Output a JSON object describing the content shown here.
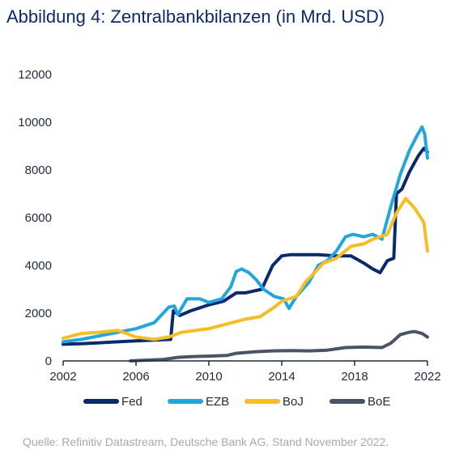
{
  "title": "Abbildung 4: Zentralbankbilanzen (in Mrd. USD)",
  "source": "Quelle: Refinitiv Datastream, Deutsche Bank AG. Stand November 2022.",
  "chart_data": {
    "type": "line",
    "xlim": [
      2002,
      2022
    ],
    "ylim": [
      0,
      12000
    ],
    "x_ticks": [
      "2002",
      "2006",
      "2010",
      "2014",
      "2018",
      "2022"
    ],
    "y_ticks": [
      "0",
      "2000",
      "4000",
      "6000",
      "8000",
      "10000",
      "12000"
    ],
    "grid": false,
    "legend_position": "bottom",
    "series": [
      {
        "name": "Fed",
        "color": "#0b2a6b",
        "points": [
          [
            2002,
            700
          ],
          [
            2003,
            720
          ],
          [
            2004,
            760
          ],
          [
            2005,
            800
          ],
          [
            2006,
            840
          ],
          [
            2007,
            870
          ],
          [
            2007.9,
            900
          ],
          [
            2008.05,
            2100
          ],
          [
            2008.4,
            1900
          ],
          [
            2009,
            2100
          ],
          [
            2010,
            2350
          ],
          [
            2010.8,
            2500
          ],
          [
            2011.5,
            2850
          ],
          [
            2012,
            2850
          ],
          [
            2012.9,
            3000
          ],
          [
            2013.5,
            4000
          ],
          [
            2014,
            4400
          ],
          [
            2014.5,
            4450
          ],
          [
            2015,
            4450
          ],
          [
            2016,
            4450
          ],
          [
            2017,
            4400
          ],
          [
            2017.8,
            4400
          ],
          [
            2018.5,
            4100
          ],
          [
            2019,
            3850
          ],
          [
            2019.4,
            3700
          ],
          [
            2019.8,
            4200
          ],
          [
            2020.15,
            4300
          ],
          [
            2020.3,
            7000
          ],
          [
            2020.6,
            7200
          ],
          [
            2021,
            7900
          ],
          [
            2021.5,
            8600
          ],
          [
            2021.8,
            8900
          ],
          [
            2022,
            8750
          ]
        ]
      },
      {
        "name": "EZB",
        "color": "#22a6dd",
        "points": [
          [
            2002,
            800
          ],
          [
            2003,
            900
          ],
          [
            2004,
            1050
          ],
          [
            2005,
            1200
          ],
          [
            2006,
            1350
          ],
          [
            2007,
            1600
          ],
          [
            2007.8,
            2250
          ],
          [
            2008.1,
            2300
          ],
          [
            2008.3,
            1950
          ],
          [
            2008.8,
            2600
          ],
          [
            2009.5,
            2600
          ],
          [
            2010,
            2450
          ],
          [
            2010.7,
            2600
          ],
          [
            2011.2,
            3100
          ],
          [
            2011.5,
            3750
          ],
          [
            2011.8,
            3850
          ],
          [
            2012.2,
            3700
          ],
          [
            2012.6,
            3400
          ],
          [
            2013,
            3000
          ],
          [
            2013.6,
            2700
          ],
          [
            2014.1,
            2600
          ],
          [
            2014.4,
            2200
          ],
          [
            2014.8,
            2700
          ],
          [
            2015.5,
            3300
          ],
          [
            2016,
            4000
          ],
          [
            2016.5,
            4200
          ],
          [
            2017,
            4600
          ],
          [
            2017.5,
            5200
          ],
          [
            2017.9,
            5300
          ],
          [
            2018.5,
            5200
          ],
          [
            2019,
            5300
          ],
          [
            2019.5,
            5100
          ],
          [
            2020,
            6500
          ],
          [
            2020.5,
            7800
          ],
          [
            2021,
            8800
          ],
          [
            2021.4,
            9400
          ],
          [
            2021.7,
            9800
          ],
          [
            2021.85,
            9500
          ],
          [
            2022,
            8500
          ]
        ]
      },
      {
        "name": "BoJ",
        "color": "#f7bd26",
        "points": [
          [
            2002,
            950
          ],
          [
            2003,
            1150
          ],
          [
            2004,
            1200
          ],
          [
            2005,
            1280
          ],
          [
            2006,
            1000
          ],
          [
            2007,
            900
          ],
          [
            2007.8,
            1000
          ],
          [
            2008.5,
            1200
          ],
          [
            2009.5,
            1300
          ],
          [
            2010,
            1350
          ],
          [
            2011,
            1550
          ],
          [
            2012,
            1750
          ],
          [
            2012.8,
            1850
          ],
          [
            2013.5,
            2200
          ],
          [
            2014,
            2500
          ],
          [
            2014.8,
            2700
          ],
          [
            2015.3,
            3300
          ],
          [
            2015.8,
            3700
          ],
          [
            2016.3,
            4100
          ],
          [
            2017,
            4300
          ],
          [
            2017.8,
            4800
          ],
          [
            2018.5,
            4900
          ],
          [
            2019,
            5100
          ],
          [
            2019.8,
            5300
          ],
          [
            2020.3,
            6200
          ],
          [
            2020.8,
            6800
          ],
          [
            2021.3,
            6400
          ],
          [
            2021.8,
            5800
          ],
          [
            2022,
            4600
          ]
        ]
      },
      {
        "name": "BoE",
        "color": "#4a5466",
        "points": [
          [
            2005.7,
            0
          ],
          [
            2006.5,
            30
          ],
          [
            2007.5,
            60
          ],
          [
            2008.3,
            150
          ],
          [
            2009,
            180
          ],
          [
            2010,
            200
          ],
          [
            2011,
            230
          ],
          [
            2011.5,
            320
          ],
          [
            2012.5,
            380
          ],
          [
            2013.5,
            420
          ],
          [
            2014.5,
            430
          ],
          [
            2015.5,
            420
          ],
          [
            2016.5,
            450
          ],
          [
            2017.5,
            560
          ],
          [
            2018.5,
            580
          ],
          [
            2019.5,
            560
          ],
          [
            2020,
            750
          ],
          [
            2020.5,
            1100
          ],
          [
            2021,
            1200
          ],
          [
            2021.3,
            1230
          ],
          [
            2021.7,
            1150
          ],
          [
            2022,
            1000
          ]
        ]
      }
    ]
  }
}
